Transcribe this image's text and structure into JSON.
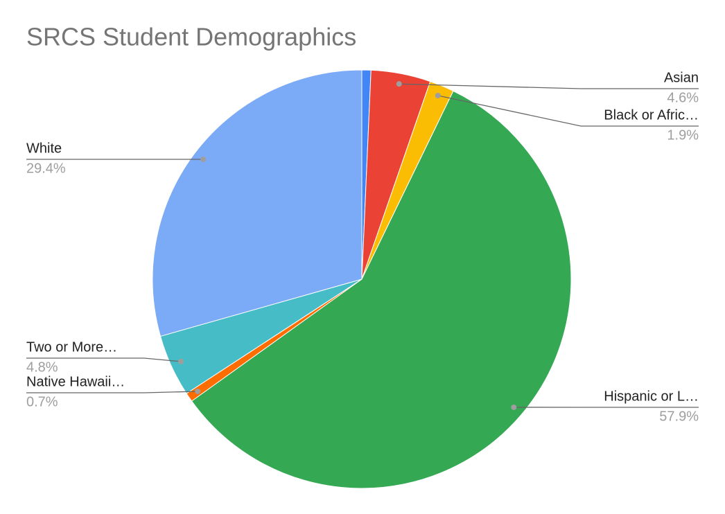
{
  "chart_data": {
    "type": "pie",
    "title": "SRCS Student Demographics",
    "categories": [
      null,
      "Asian",
      "Black or Afric…",
      "Hispanic or L…",
      "Native Hawaii…",
      "Two or More…",
      "White"
    ],
    "values": [
      0.7,
      4.6,
      1.9,
      57.9,
      0.7,
      4.8,
      29.4
    ],
    "value_labels": [
      null,
      "4.6%",
      "1.9%",
      "57.9%",
      "0.7%",
      "4.8%",
      "29.4%"
    ],
    "colors": [
      "#4285f4",
      "#ea4335",
      "#fbbc04",
      "#34a853",
      "#ff6d01",
      "#46bdc6",
      "#7baaf7"
    ]
  }
}
